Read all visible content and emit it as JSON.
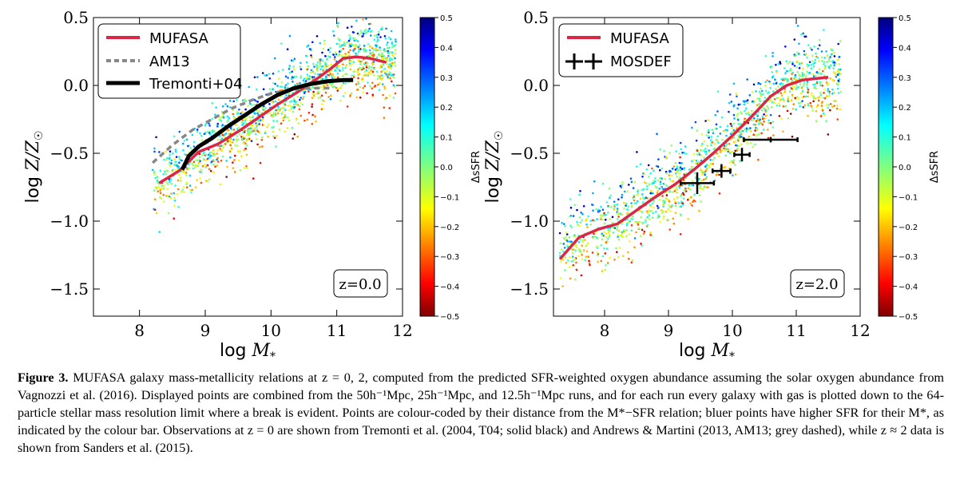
{
  "chart_data": [
    {
      "type": "scatter",
      "panel": "left",
      "xlabel": "log M*",
      "ylabel": "log Z/Z☉",
      "xlim": [
        7.3,
        12
      ],
      "ylim": [
        -1.7,
        0.5
      ],
      "xticks": [
        "8",
        "9",
        "10",
        "11",
        "12"
      ],
      "yticks": [
        "0.5",
        "0.0",
        "−0.5",
        "−1.0",
        "−1.5"
      ],
      "annotation": "z=0.0",
      "legend_position": "top-left",
      "series": [
        {
          "name": "MUFASA",
          "style": "line",
          "color": "#dc2645",
          "x": [
            8.3,
            8.6,
            8.9,
            9.2,
            9.5,
            9.8,
            10.1,
            10.4,
            10.7,
            10.9,
            11.1,
            11.3,
            11.5,
            11.75
          ],
          "y": [
            -0.72,
            -0.63,
            -0.49,
            -0.43,
            -0.34,
            -0.24,
            -0.14,
            -0.05,
            0.05,
            0.12,
            0.2,
            0.21,
            0.2,
            0.17
          ]
        },
        {
          "name": "AM13",
          "style": "dashed",
          "color": "#888888",
          "x": [
            8.2,
            8.5,
            8.8,
            9.1,
            9.4,
            9.7,
            10.0,
            10.3,
            10.6,
            10.9
          ],
          "y": [
            -0.57,
            -0.44,
            -0.33,
            -0.25,
            -0.17,
            -0.11,
            -0.06,
            -0.03,
            -0.02,
            -0.02
          ]
        },
        {
          "name": "Tremonti+04",
          "style": "line",
          "color": "#000000",
          "x": [
            8.65,
            8.75,
            8.9,
            9.1,
            9.35,
            9.6,
            9.85,
            10.1,
            10.35,
            10.6,
            10.85,
            11.1,
            11.25
          ],
          "y": [
            -0.62,
            -0.52,
            -0.45,
            -0.39,
            -0.3,
            -0.22,
            -0.14,
            -0.07,
            -0.02,
            0.01,
            0.03,
            0.04,
            0.04
          ]
        }
      ],
      "scatter": {
        "name": "MUFASA galaxies",
        "color_by": "ΔsSFR"
      }
    },
    {
      "type": "scatter",
      "panel": "right",
      "xlabel": "log M*",
      "ylabel": "log Z/Z☉",
      "xlim": [
        7.2,
        12
      ],
      "ylim": [
        -1.7,
        0.5
      ],
      "xticks": [
        "8",
        "9",
        "10",
        "11",
        "12"
      ],
      "yticks": [
        "0.5",
        "0.0",
        "−0.5",
        "−1.0",
        "−1.5"
      ],
      "annotation": "z=2.0",
      "legend_position": "top-left",
      "series": [
        {
          "name": "MUFASA",
          "style": "line",
          "color": "#dc2645",
          "x": [
            7.3,
            7.6,
            7.9,
            8.2,
            8.5,
            8.8,
            9.1,
            9.4,
            9.7,
            10.0,
            10.3,
            10.6,
            10.85,
            11.1,
            11.5
          ],
          "y": [
            -1.28,
            -1.12,
            -1.06,
            -1.02,
            -0.92,
            -0.82,
            -0.73,
            -0.62,
            -0.5,
            -0.37,
            -0.23,
            -0.08,
            0.0,
            0.04,
            0.06
          ]
        },
        {
          "name": "MOSDEF",
          "style": "errorbar",
          "color": "#000000",
          "x": [
            9.45,
            9.83,
            10.15,
            10.6
          ],
          "y": [
            -0.72,
            -0.63,
            -0.51,
            -0.4
          ],
          "xerr": [
            0.26,
            0.14,
            0.12,
            0.42
          ],
          "yerr": [
            0.08,
            0.05,
            0.05,
            0.02
          ]
        }
      ],
      "scatter": {
        "name": "MUFASA galaxies",
        "color_by": "ΔsSFR"
      }
    }
  ],
  "colorbar": {
    "label": "ΔsSFR",
    "range": [
      -0.5,
      0.5
    ],
    "ticks": [
      "0.5",
      "0.4",
      "0.3",
      "0.2",
      "0.1",
      "0.0",
      "−0.1",
      "−0.2",
      "−0.3",
      "−0.4",
      "−0.5"
    ],
    "colors": [
      "#7f0000",
      "#ff0000",
      "#ffff00",
      "#00ffff",
      "#0000ff",
      "#00007f"
    ]
  },
  "caption": {
    "label": "Figure 3.",
    "text": "MUFASA galaxy mass-metallicity relations at z = 0, 2, computed from the predicted SFR-weighted oxygen abundance assuming the solar oxygen abundance from Vagnozzi et al. (2016). Displayed points are combined from the 50h⁻¹Mpc, 25h⁻¹Mpc, and 12.5h⁻¹Mpc runs, and for each run every galaxy with gas is plotted down to the 64-particle stellar mass resolution limit where a break is evident. Points are colour-coded by their distance from the M*−SFR relation; bluer points have higher SFR for their M*, as indicated by the colour bar. Observations at z = 0 are shown from Tremonti et al. (2004, T04; solid black) and Andrews & Martini (2013, AM13; grey dashed), while z ≈ 2 data is shown from Sanders et al. (2015)."
  }
}
